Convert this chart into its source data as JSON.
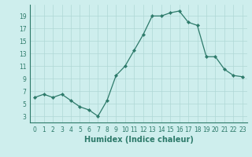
{
  "x": [
    0,
    1,
    2,
    3,
    4,
    5,
    6,
    7,
    8,
    9,
    10,
    11,
    12,
    13,
    14,
    15,
    16,
    17,
    18,
    19,
    20,
    21,
    22,
    23
  ],
  "y": [
    6,
    6.5,
    6,
    6.5,
    5.5,
    4.5,
    4,
    3,
    5.5,
    9.5,
    11,
    13.5,
    16,
    19,
    19,
    19.5,
    19.8,
    18,
    17.5,
    12.5,
    12.5,
    10.5,
    9.5,
    9.3
  ],
  "line_color": "#2d7a6a",
  "marker": "D",
  "marker_size": 2.2,
  "bg_color": "#ceeeed",
  "grid_color": "#afd8d5",
  "xlabel": "Humidex (Indice chaleur)",
  "xlim": [
    -0.5,
    23.5
  ],
  "ylim": [
    2,
    20.8
  ],
  "yticks": [
    3,
    5,
    7,
    9,
    11,
    13,
    15,
    17,
    19
  ],
  "xticks": [
    0,
    1,
    2,
    3,
    4,
    5,
    6,
    7,
    8,
    9,
    10,
    11,
    12,
    13,
    14,
    15,
    16,
    17,
    18,
    19,
    20,
    21,
    22,
    23
  ],
  "tick_color": "#2d7a6a",
  "label_fontsize": 7,
  "tick_fontsize": 5.5
}
